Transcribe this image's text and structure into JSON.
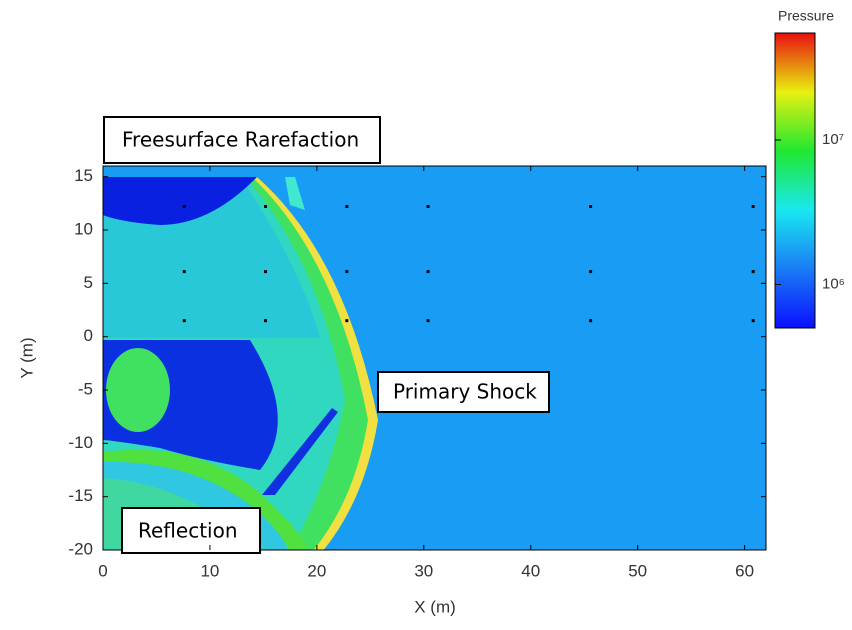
{
  "chart_data": {
    "type": "field",
    "xlabel": "X (m)",
    "ylabel": "Y (m)",
    "xlim": [
      0,
      62
    ],
    "ylim": [
      -20,
      16
    ],
    "xticks": [
      0,
      10,
      20,
      30,
      40,
      50,
      60
    ],
    "yticks": [
      -20,
      -15,
      -10,
      -5,
      0,
      5,
      10,
      15
    ],
    "colorbar": {
      "title": "Pressure",
      "log": true,
      "clim": [
        500000,
        55000000
      ],
      "ticks": [
        {
          "value": 1000000,
          "label": "10⁶"
        },
        {
          "value": 10000000,
          "label": "10⁷"
        }
      ]
    },
    "markers": {
      "x": [
        7.6,
        15.2,
        22.8,
        30.4,
        45.6,
        60.8,
        7.6,
        15.2,
        22.8,
        30.4,
        45.6,
        60.8,
        7.6,
        15.2,
        22.8,
        30.4,
        45.6,
        60.8
      ],
      "y": [
        12.2,
        12.2,
        12.2,
        12.2,
        12.2,
        12.2,
        6.1,
        6.1,
        6.1,
        6.1,
        6.1,
        6.1,
        1.5,
        1.5,
        1.5,
        1.5,
        1.5,
        1.5
      ]
    },
    "annotations": [
      "Freesurface Rarefaction",
      "Primary Shock",
      "Reflection"
    ]
  }
}
